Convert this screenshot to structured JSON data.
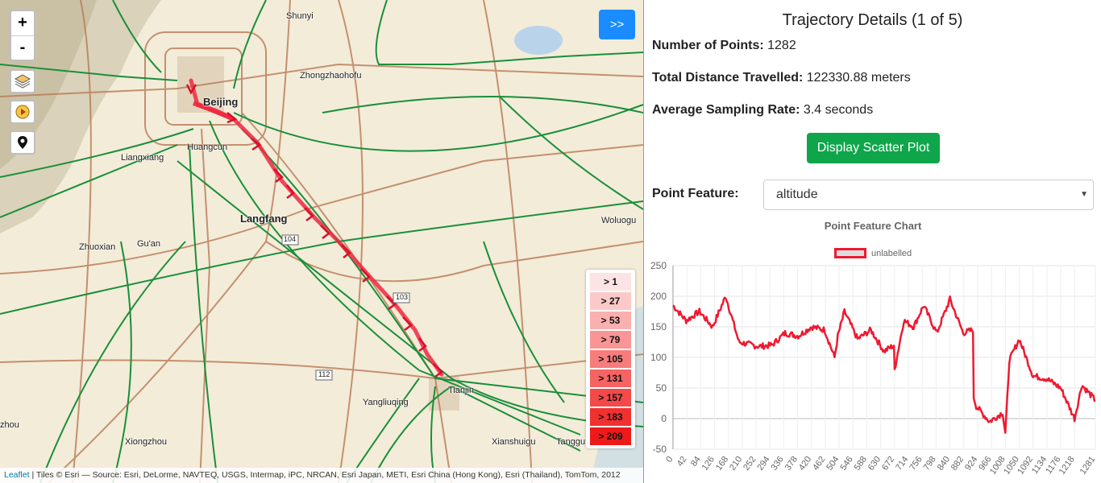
{
  "map": {
    "zoom_in": "+",
    "zoom_out": "-",
    "expand_label": ">>",
    "cities": [
      {
        "name": "Shunyi",
        "big": false
      },
      {
        "name": "Zhongzhaohofu",
        "big": false
      },
      {
        "name": "Beijing",
        "big": true
      },
      {
        "name": "Huangcun",
        "big": false
      },
      {
        "name": "Liangxiang",
        "big": false
      },
      {
        "name": "Langfang",
        "big": true
      },
      {
        "name": "Woluogu",
        "big": false
      },
      {
        "name": "Zhuoxian",
        "big": false
      },
      {
        "name": "Gu'an",
        "big": false
      },
      {
        "name": "Tianjin",
        "big": false
      },
      {
        "name": "Yangliuqing",
        "big": false
      },
      {
        "name": "Xiongzhou",
        "big": false
      },
      {
        "name": "Xianshuigu",
        "big": false
      },
      {
        "name": "Tanggu",
        "big": false
      },
      {
        "name": "zhou",
        "big": false
      }
    ],
    "road_shields": [
      "104",
      "103",
      "112"
    ],
    "legend": [
      {
        "label": "> 1",
        "color": "#fde4e4"
      },
      {
        "label": "> 27",
        "color": "#fcc9c9"
      },
      {
        "label": "> 53",
        "color": "#fbb0b0"
      },
      {
        "label": "> 79",
        "color": "#f99595"
      },
      {
        "label": "> 105",
        "color": "#f77c7c"
      },
      {
        "label": "> 131",
        "color": "#f56363"
      },
      {
        "label": "> 157",
        "color": "#f34949"
      },
      {
        "label": "> 183",
        "color": "#f13030"
      },
      {
        "label": "> 209",
        "color": "#ee1a1a"
      }
    ],
    "attribution_link": "Leaflet",
    "attribution_text": " | Tiles © Esri — Source: Esri, DeLorme, NAVTEQ, USGS, Intermap, iPC, NRCAN, Esri Japan, METI, Esri China (Hong Kong), Esri (Thailand), TomTom, 2012"
  },
  "panel": {
    "title": "Trajectory Details (1 of 5)",
    "points_label": "Number of Points:",
    "points_value": "1282",
    "distance_label": "Total Distance Travelled:",
    "distance_value": "122330.88 meters",
    "sampling_label": "Average Sampling Rate:",
    "sampling_value": "3.4 seconds",
    "scatter_button": "Display Scatter Plot",
    "feature_label": "Point Feature:",
    "feature_value": "altitude",
    "chart_title": "Point Feature Chart",
    "legend_label": "unlabelled"
  },
  "colors": {
    "line": "#ee1a31",
    "button_green": "#0fa64b",
    "button_blue": "#1a8cff"
  },
  "chart_data": {
    "type": "line",
    "title": "Point Feature Chart",
    "series": [
      {
        "name": "unlabelled",
        "values": "see x/y"
      }
    ],
    "x": [
      0,
      40,
      80,
      120,
      160,
      200,
      260,
      300,
      340,
      380,
      420,
      460,
      490,
      500,
      520,
      560,
      600,
      640,
      670,
      672,
      700,
      730,
      760,
      800,
      840,
      880,
      910,
      912,
      920,
      960,
      1000,
      1008,
      1020,
      1050,
      1092,
      1134,
      1176,
      1218,
      1240,
      1281
    ],
    "y": [
      185,
      160,
      175,
      150,
      200,
      125,
      118,
      120,
      140,
      135,
      150,
      145,
      100,
      135,
      175,
      130,
      145,
      110,
      120,
      80,
      160,
      150,
      185,
      140,
      195,
      140,
      145,
      35,
      20,
      -5,
      10,
      -25,
      95,
      130,
      70,
      65,
      50,
      0,
      55,
      30
    ],
    "xticks": [
      0,
      42,
      84,
      126,
      168,
      210,
      252,
      294,
      336,
      378,
      420,
      462,
      504,
      546,
      588,
      630,
      672,
      714,
      756,
      798,
      840,
      882,
      924,
      966,
      1008,
      1050,
      1092,
      1134,
      1176,
      1218,
      1281
    ],
    "yticks": [
      250,
      200,
      150,
      100,
      50,
      0,
      -50
    ],
    "ylim": [
      -50,
      250
    ],
    "xlim": [
      0,
      1281
    ],
    "grid": true,
    "legend_position": "top"
  }
}
